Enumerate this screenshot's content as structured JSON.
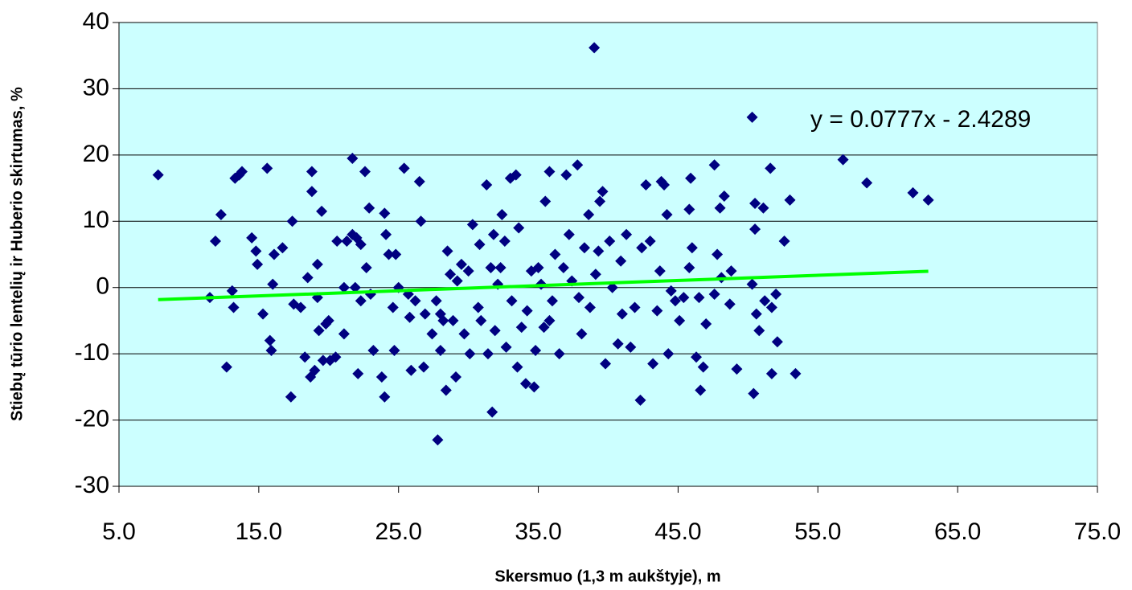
{
  "chart_data": {
    "type": "scatter",
    "x_label": "Skersmuo (1,3 m aukštyje), m",
    "y_label": "Stiebų tūrio lentelių ir Huberio skirtumas, %",
    "xlim": [
      5,
      75
    ],
    "ylim": [
      -30,
      40
    ],
    "xticks": [
      {
        "value": 5,
        "label": "5.0"
      },
      {
        "value": 15,
        "label": "15.0"
      },
      {
        "value": 25,
        "label": "25.0"
      },
      {
        "value": 35,
        "label": "35.0"
      },
      {
        "value": 45,
        "label": "45.0"
      },
      {
        "value": 55,
        "label": "55.0"
      },
      {
        "value": 65,
        "label": "65.0"
      },
      {
        "value": 75,
        "label": "75.0"
      }
    ],
    "yticks": [
      -30,
      -20,
      -10,
      0,
      10,
      20,
      30,
      40
    ],
    "grid": true,
    "background": "#ccffff",
    "series": [
      {
        "color": "#000080",
        "x": [
          7.8,
          11.5,
          11.9,
          12.3,
          12.7,
          13.1,
          13.2,
          13.3,
          13.6,
          13.8,
          14.5,
          14.8,
          14.9,
          15.3,
          15.6,
          15.8,
          15.9,
          16.0,
          16.1,
          16.7,
          17.3,
          17.4,
          17.5,
          18.0,
          18.3,
          18.5,
          18.7,
          18.8,
          18.8,
          19.0,
          19.2,
          19.2,
          19.3,
          19.5,
          19.6,
          19.8,
          20.0,
          20.1,
          20.5,
          20.6,
          21.1,
          21.1,
          21.3,
          21.7,
          21.7,
          21.9,
          22.0,
          22.1,
          22.3,
          22.3,
          22.6,
          22.7,
          22.9,
          23.0,
          23.2,
          23.8,
          24.0,
          24.0,
          24.1,
          24.3,
          24.6,
          24.7,
          24.8,
          25.0,
          25.4,
          25.7,
          25.8,
          25.9,
          26.2,
          26.5,
          26.6,
          26.8,
          26.9,
          27.8,
          27.4,
          27.7,
          28.0,
          28.0,
          28.2,
          28.4,
          28.5,
          28.7,
          28.9,
          29.1,
          29.2,
          29.5,
          29.7,
          30.0,
          30.1,
          30.3,
          30.7,
          30.8,
          30.9,
          31.7,
          31.3,
          31.4,
          31.6,
          31.8,
          31.9,
          32.1,
          32.3,
          32.4,
          32.6,
          32.7,
          33.0,
          33.1,
          33.4,
          33.5,
          33.6,
          33.8,
          34.1,
          34.2,
          34.5,
          34.7,
          34.8,
          35.0,
          35.2,
          35.4,
          35.5,
          35.8,
          35.8,
          36.0,
          36.2,
          36.5,
          36.8,
          37.0,
          37.2,
          37.4,
          37.8,
          37.9,
          38.1,
          38.3,
          38.6,
          38.7,
          39.1,
          39.3,
          39.4,
          39.6,
          39.8,
          40.1,
          40.3,
          39.0,
          40.7,
          40.9,
          41.0,
          41.3,
          41.6,
          41.9,
          42.3,
          42.4,
          42.7,
          43.0,
          43.2,
          43.5,
          43.7,
          43.8,
          44.0,
          44.2,
          44.3,
          44.5,
          44.8,
          45.1,
          45.4,
          45.8,
          45.8,
          45.9,
          46.0,
          46.3,
          46.5,
          46.6,
          46.8,
          47.0,
          47.6,
          47.6,
          47.8,
          48.0,
          48.1,
          48.3,
          48.7,
          48.8,
          49.2,
          50.3,
          50.3,
          50.4,
          50.5,
          50.5,
          50.6,
          50.8,
          51.1,
          51.2,
          51.6,
          51.7,
          51.7,
          52.0,
          52.1,
          52.6,
          53.0,
          53.4,
          56.8,
          58.5,
          61.8,
          62.9
        ],
        "values": [
          17,
          -1.5,
          7,
          11,
          -12,
          -0.5,
          -3,
          16.5,
          17,
          17.5,
          7.5,
          5.5,
          3.5,
          -4,
          18,
          -8,
          -9.5,
          0.5,
          5,
          6,
          -16.5,
          10,
          -2.5,
          -3,
          -10.5,
          1.5,
          -13.5,
          17.5,
          14.5,
          -12.5,
          3.5,
          -1.5,
          -6.5,
          11.5,
          -11,
          -5.5,
          -5,
          -11,
          -10.5,
          7,
          0,
          -7,
          7,
          19.5,
          8,
          0,
          7.5,
          -13,
          -2,
          6.5,
          17.5,
          3,
          12,
          -1,
          -9.5,
          -13.5,
          11.2,
          -16.5,
          8,
          5,
          -3,
          -9.5,
          5,
          0,
          18,
          -1,
          -4.5,
          -12.5,
          -2,
          16,
          10,
          -12,
          -4,
          -23,
          -7,
          -2,
          -4,
          -9.5,
          -5,
          -15.5,
          5.5,
          2,
          -5,
          -13.5,
          1,
          3.5,
          -7,
          2.5,
          -10,
          9.5,
          -3,
          6.5,
          -5,
          -18.8,
          15.5,
          -10,
          3,
          8,
          -6.5,
          0.5,
          3,
          11,
          7,
          -9,
          16.5,
          -2,
          17,
          -12,
          9,
          -6,
          -14.5,
          -3.5,
          2.5,
          -15,
          -9.5,
          3,
          0.5,
          -6,
          13,
          17.5,
          -5,
          -2,
          5,
          -10,
          3,
          17,
          8,
          1,
          18.5,
          -1.5,
          -7,
          6,
          11,
          -3,
          2,
          5.5,
          13,
          14.5,
          -11.5,
          7,
          0,
          36.2,
          -8.5,
          4,
          -4,
          8,
          -9,
          -3,
          -17,
          6,
          15.5,
          7,
          -11.5,
          -3.5,
          2.5,
          16,
          15.5,
          11,
          -10,
          -0.5,
          -2,
          -5,
          -1.5,
          3,
          11.8,
          16.5,
          6,
          -10.5,
          -1.5,
          -15.5,
          -12,
          -5.5,
          18.5,
          -1,
          5,
          12,
          1.5,
          13.8,
          -2.5,
          2.5,
          -12.3,
          25.7,
          0.5,
          -16,
          8.8,
          12.7,
          -4,
          -6.5,
          12,
          -2,
          18,
          -13,
          -3,
          -1,
          -8.2,
          7,
          13.2,
          -13,
          19.3,
          15.8,
          14.3,
          13.2
        ]
      }
    ],
    "trendline": {
      "label": "y = 0.0777x - 2.4289",
      "slope": 0.0777,
      "intercept": -2.4289,
      "x": [
        7.8,
        62.9
      ],
      "color": "#00ff00"
    }
  }
}
